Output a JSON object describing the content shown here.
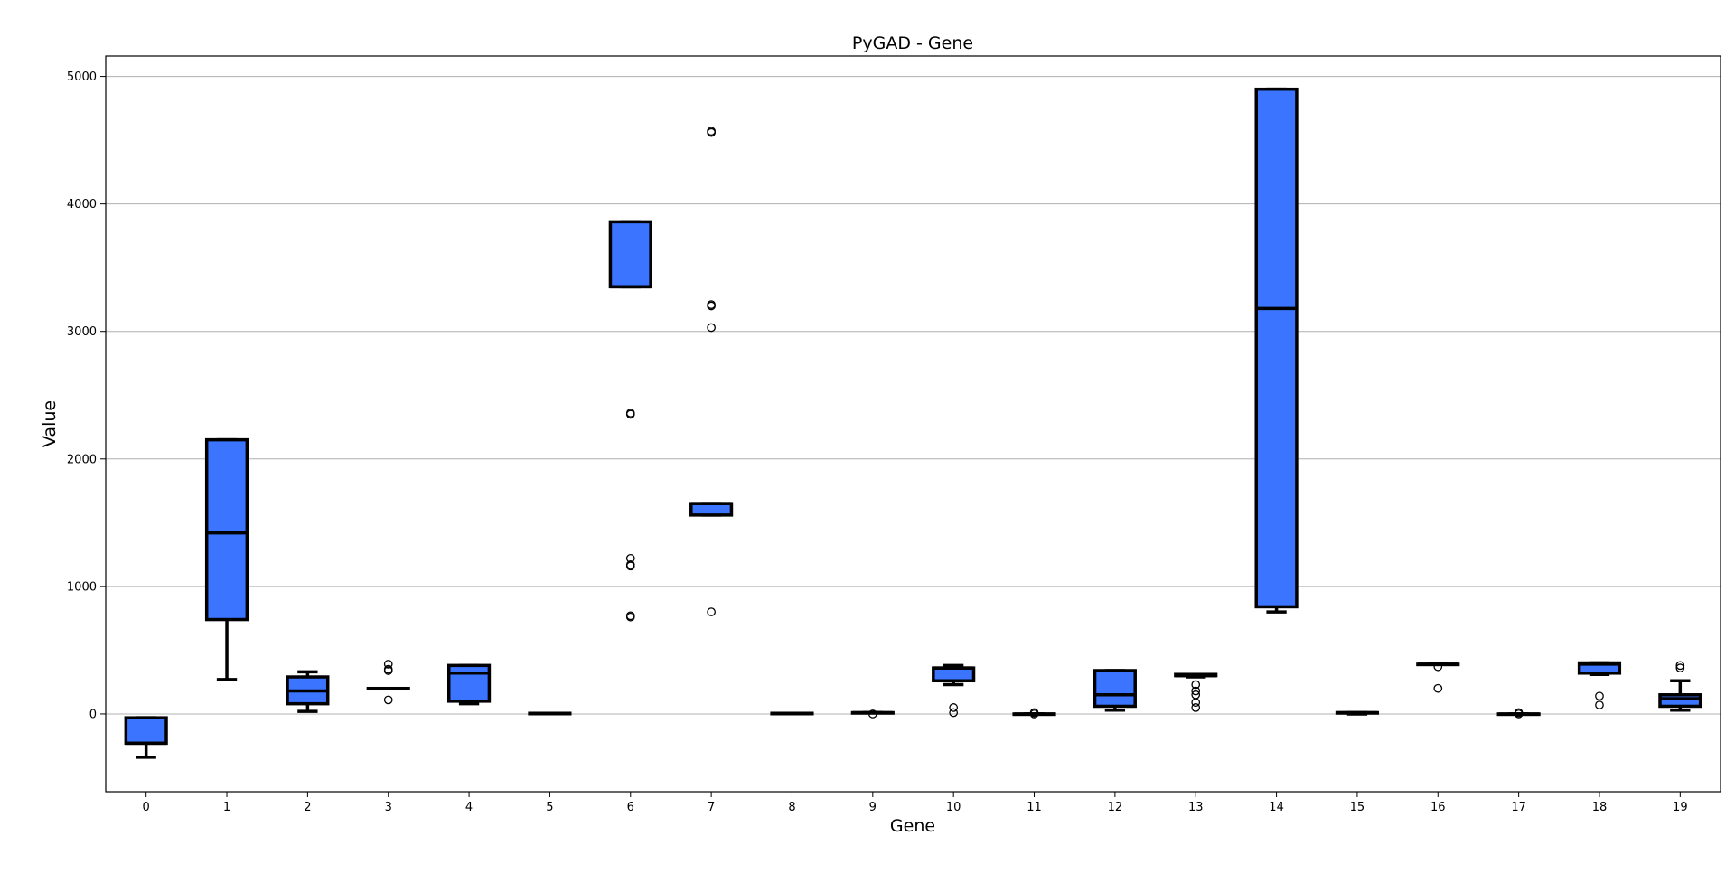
{
  "chart_data": {
    "type": "box",
    "title": "PyGAD - Gene",
    "xlabel": "Gene",
    "ylabel": "Value",
    "categories": [
      "0",
      "1",
      "2",
      "3",
      "4",
      "5",
      "6",
      "7",
      "8",
      "9",
      "10",
      "11",
      "12",
      "13",
      "14",
      "15",
      "16",
      "17",
      "18",
      "19"
    ],
    "ylim": [
      -610,
      5160
    ],
    "yticks": [
      0,
      1000,
      2000,
      3000,
      4000,
      5000
    ],
    "grid": "horizontal",
    "colors": {
      "box_fill": "#3b74ff",
      "box_edge": "#000000",
      "grid": "#b0b0b0"
    },
    "boxes": [
      {
        "gene": "0",
        "whislo": -340,
        "q1": -230,
        "med": -230,
        "q3": -30,
        "whishi": -30,
        "fliers": []
      },
      {
        "gene": "1",
        "whislo": 270,
        "q1": 740,
        "med": 1420,
        "q3": 2150,
        "whishi": 2150,
        "fliers": []
      },
      {
        "gene": "2",
        "whislo": 20,
        "q1": 80,
        "med": 180,
        "q3": 290,
        "whishi": 330,
        "fliers": []
      },
      {
        "gene": "3",
        "whislo": 200,
        "q1": 200,
        "med": 200,
        "q3": 200,
        "whishi": 200,
        "fliers": [
          110,
          340,
          350,
          390
        ]
      },
      {
        "gene": "4",
        "whislo": 80,
        "q1": 100,
        "med": 320,
        "q3": 380,
        "whishi": 380,
        "fliers": []
      },
      {
        "gene": "5",
        "whislo": 5,
        "q1": 5,
        "med": 5,
        "q3": 5,
        "whishi": 5,
        "fliers": []
      },
      {
        "gene": "6",
        "whislo": 3350,
        "q1": 3350,
        "med": 3350,
        "q3": 3860,
        "whishi": 3860,
        "fliers": [
          760,
          770,
          1160,
          1170,
          1220,
          2350,
          2360
        ]
      },
      {
        "gene": "7",
        "whislo": 1560,
        "q1": 1560,
        "med": 1650,
        "q3": 1650,
        "whishi": 1650,
        "fliers": [
          800,
          3030,
          3200,
          3210,
          4560,
          4570
        ]
      },
      {
        "gene": "8",
        "whislo": 5,
        "q1": 5,
        "med": 5,
        "q3": 5,
        "whishi": 5,
        "fliers": []
      },
      {
        "gene": "9",
        "whislo": 10,
        "q1": 10,
        "med": 10,
        "q3": 10,
        "whishi": 10,
        "fliers": [
          0
        ]
      },
      {
        "gene": "10",
        "whislo": 230,
        "q1": 260,
        "med": 360,
        "q3": 360,
        "whishi": 380,
        "fliers": [
          10,
          50
        ]
      },
      {
        "gene": "11",
        "whislo": 0,
        "q1": 0,
        "med": 0,
        "q3": 0,
        "whishi": 0,
        "fliers": [
          0,
          10
        ]
      },
      {
        "gene": "12",
        "whislo": 30,
        "q1": 60,
        "med": 150,
        "q3": 340,
        "whishi": 340,
        "fliers": []
      },
      {
        "gene": "13",
        "whislo": 290,
        "q1": 300,
        "med": 300,
        "q3": 310,
        "whishi": 310,
        "fliers": [
          50,
          90,
          150,
          180,
          230
        ]
      },
      {
        "gene": "14",
        "whislo": 800,
        "q1": 840,
        "med": 3180,
        "q3": 4900,
        "whishi": 4900,
        "fliers": []
      },
      {
        "gene": "15",
        "whislo": 0,
        "q1": 10,
        "med": 10,
        "q3": 10,
        "whishi": 10,
        "fliers": []
      },
      {
        "gene": "16",
        "whislo": 390,
        "q1": 390,
        "med": 390,
        "q3": 390,
        "whishi": 390,
        "fliers": [
          200,
          370
        ]
      },
      {
        "gene": "17",
        "whislo": 0,
        "q1": 0,
        "med": 0,
        "q3": 0,
        "whishi": 0,
        "fliers": [
          0,
          10
        ]
      },
      {
        "gene": "18",
        "whislo": 310,
        "q1": 320,
        "med": 390,
        "q3": 400,
        "whishi": 400,
        "fliers": [
          70,
          140
        ]
      },
      {
        "gene": "19",
        "whislo": 30,
        "q1": 60,
        "med": 120,
        "q3": 150,
        "whishi": 260,
        "fliers": [
          360,
          380
        ]
      }
    ]
  }
}
